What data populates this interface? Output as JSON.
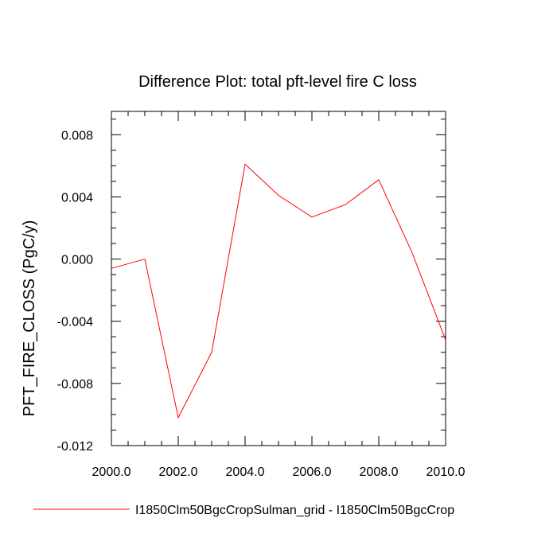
{
  "chart_data": {
    "type": "line",
    "title": "Difference Plot: total pft-level fire C loss",
    "xlabel": "",
    "ylabel": "PFT_FIRE_CLOSS  (PgC/y)",
    "xlim": [
      2000,
      2010
    ],
    "ylim": [
      -0.012,
      0.0095
    ],
    "x_ticks": [
      2000,
      2002,
      2004,
      2006,
      2008,
      2010
    ],
    "x_tick_labels": [
      "2000.0",
      "2002.0",
      "2004.0",
      "2006.0",
      "2008.0",
      "2010.0"
    ],
    "y_ticks": [
      -0.012,
      -0.008,
      -0.004,
      0.0,
      0.004,
      0.008
    ],
    "y_tick_labels": [
      "-0.012",
      "-0.008",
      "-0.004",
      "0.000",
      "0.004",
      "0.008"
    ],
    "grid": false,
    "legend_position": "bottom",
    "series": [
      {
        "name": "I1850Clm50BgcCropSulman_grid - I1850Clm50BgcCrop",
        "color": "#ff0000",
        "x": [
          2000,
          2001,
          2002,
          2003,
          2004,
          2005,
          2006,
          2007,
          2008,
          2009,
          2010
        ],
        "y": [
          -0.0006,
          0.0,
          -0.0102,
          -0.006,
          0.0061,
          0.0041,
          0.0027,
          0.0035,
          0.0051,
          0.0004,
          -0.0052
        ]
      }
    ]
  }
}
